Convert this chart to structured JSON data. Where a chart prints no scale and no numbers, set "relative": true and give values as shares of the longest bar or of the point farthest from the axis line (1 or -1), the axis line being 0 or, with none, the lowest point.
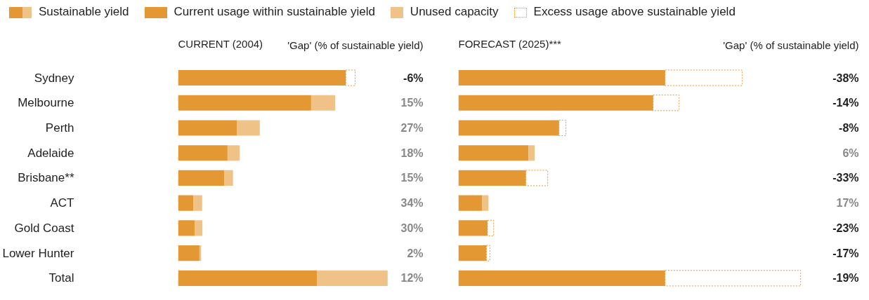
{
  "chart_data": [
    {
      "type": "bar",
      "orientation": "horizontal",
      "stacked": true,
      "relative": true,
      "tick_labels": "y",
      "legend": "top",
      "legend_title": "Sustainable yield",
      "title": "CURRENT (2004)",
      "subtitle": "'Gap' (% of sustainable yield)",
      "categories": [
        "Sydney",
        "Melbourne",
        "Perth",
        "Adelaide",
        "Brisbane**",
        "ACT",
        "Gold Coast",
        "Lower Hunter",
        "Total"
      ],
      "series": [
        {
          "name": "Current usage within sustainable yield",
          "color": "#e39834",
          "values": [
            0.8,
            0.635,
            0.28,
            0.236,
            0.22,
            0.073,
            0.079,
            0.102,
            0.664
          ]
        },
        {
          "name": "Unused capacity",
          "color": "#efc287",
          "values": [
            null,
            0.115,
            0.11,
            0.058,
            0.042,
            0.042,
            0.037,
            0.008,
            0.336
          ]
        },
        {
          "name": "Excess usage above sustainable yield",
          "color": "#e39834",
          "line_style": "dotted",
          "values": [
            0.045,
            null,
            null,
            null,
            null,
            null,
            null,
            null,
            null
          ]
        }
      ],
      "annotations": [
        "-6%",
        "15%",
        "27%",
        "18%",
        "15%",
        "34%",
        "30%",
        "2%",
        "12%"
      ]
    },
    {
      "type": "bar",
      "orientation": "horizontal",
      "stacked": true,
      "relative": true,
      "title": "FORECAST (2025)***",
      "subtitle": "'Gap' (% of sustainable yield)",
      "categories": [
        null,
        null,
        null,
        null,
        null,
        null,
        null,
        null,
        null
      ],
      "series": [
        {
          "color": "#e39834",
          "values": [
            0.604,
            0.569,
            0.294,
            0.205,
            0.197,
            0.07,
            0.085,
            0.082,
            0.604
          ]
        },
        {
          "color": "#efc287",
          "values": [
            null,
            null,
            null,
            0.018,
            null,
            0.018,
            null,
            null,
            null
          ]
        },
        {
          "color": "#e39834",
          "line_style": "dotted",
          "values": [
            0.225,
            0.076,
            0.02,
            null,
            0.064,
            null,
            0.018,
            0.01,
            0.396
          ]
        }
      ],
      "annotations": [
        "-38%",
        "-14%",
        "-8%",
        "6%",
        "-33%",
        "17%",
        "-23%",
        "-17%",
        "-19%"
      ]
    }
  ]
}
